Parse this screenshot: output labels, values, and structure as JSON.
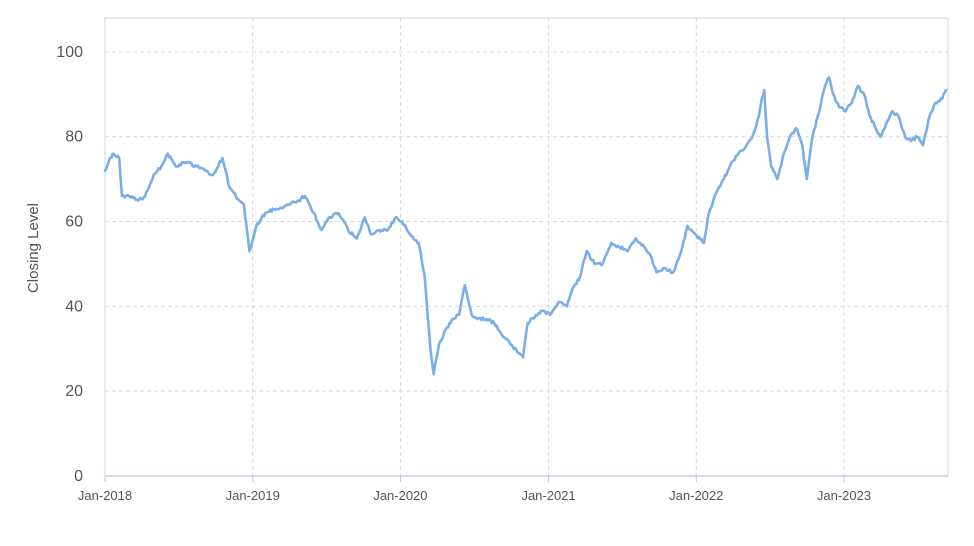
{
  "chart_data": {
    "type": "line",
    "title": "",
    "xlabel": "",
    "ylabel": "Closing Level",
    "ylim": [
      0,
      108
    ],
    "xlim": [
      "2018-01-01",
      "2023-09-15"
    ],
    "y_ticks": [
      "0",
      "20",
      "40",
      "60",
      "80",
      "100"
    ],
    "x_ticks": [
      {
        "label": "Jan-2018",
        "date": "2018-01-01"
      },
      {
        "label": "Jan-2019",
        "date": "2019-01-01"
      },
      {
        "label": "Jan-2020",
        "date": "2020-01-01"
      },
      {
        "label": "Jan-2021",
        "date": "2021-01-01"
      },
      {
        "label": "Jan-2022",
        "date": "2022-01-01"
      },
      {
        "label": "Jan-2023",
        "date": "2023-01-01"
      }
    ],
    "grid": true,
    "legend": "none",
    "series": [
      {
        "color": "#7aaee6",
        "points": [
          [
            "2018-01-01",
            72
          ],
          [
            "2018-01-20",
            76
          ],
          [
            "2018-02-05",
            75
          ],
          [
            "2018-02-12",
            66
          ],
          [
            "2018-03-01",
            66
          ],
          [
            "2018-03-25",
            65
          ],
          [
            "2018-04-10",
            66
          ],
          [
            "2018-05-01",
            71
          ],
          [
            "2018-05-20",
            73
          ],
          [
            "2018-06-05",
            76
          ],
          [
            "2018-06-25",
            73
          ],
          [
            "2018-07-20",
            74
          ],
          [
            "2018-08-15",
            73
          ],
          [
            "2018-09-05",
            72
          ],
          [
            "2018-09-25",
            71
          ],
          [
            "2018-10-18",
            75
          ],
          [
            "2018-11-05",
            68
          ],
          [
            "2018-11-20",
            66
          ],
          [
            "2018-12-10",
            64
          ],
          [
            "2018-12-24",
            53
          ],
          [
            "2019-01-10",
            59
          ],
          [
            "2019-02-01",
            62
          ],
          [
            "2019-03-01",
            63
          ],
          [
            "2019-04-01",
            64
          ],
          [
            "2019-04-25",
            65
          ],
          [
            "2019-05-10",
            66
          ],
          [
            "2019-06-01",
            62
          ],
          [
            "2019-06-20",
            58
          ],
          [
            "2019-07-10",
            61
          ],
          [
            "2019-08-01",
            62
          ],
          [
            "2019-08-25",
            58
          ],
          [
            "2019-09-15",
            56
          ],
          [
            "2019-10-05",
            61
          ],
          [
            "2019-10-20",
            57
          ],
          [
            "2019-11-10",
            58
          ],
          [
            "2019-12-01",
            58
          ],
          [
            "2019-12-20",
            61
          ],
          [
            "2020-01-05",
            60
          ],
          [
            "2020-01-25",
            57
          ],
          [
            "2020-02-15",
            55
          ],
          [
            "2020-03-01",
            47
          ],
          [
            "2020-03-15",
            30
          ],
          [
            "2020-03-23",
            24
          ],
          [
            "2020-04-05",
            31
          ],
          [
            "2020-04-25",
            35
          ],
          [
            "2020-05-10",
            37
          ],
          [
            "2020-05-25",
            38
          ],
          [
            "2020-06-08",
            45
          ],
          [
            "2020-06-25",
            38
          ],
          [
            "2020-07-10",
            37
          ],
          [
            "2020-08-01",
            37
          ],
          [
            "2020-08-20",
            36
          ],
          [
            "2020-09-10",
            33
          ],
          [
            "2020-10-01",
            31
          ],
          [
            "2020-10-20",
            29
          ],
          [
            "2020-10-30",
            28
          ],
          [
            "2020-11-10",
            36
          ],
          [
            "2020-12-01",
            38
          ],
          [
            "2020-12-20",
            39
          ],
          [
            "2021-01-05",
            38
          ],
          [
            "2021-01-25",
            41
          ],
          [
            "2021-02-15",
            40
          ],
          [
            "2021-03-01",
            44
          ],
          [
            "2021-03-20",
            47
          ],
          [
            "2021-04-05",
            53
          ],
          [
            "2021-04-25",
            50
          ],
          [
            "2021-05-15",
            50
          ],
          [
            "2021-06-05",
            55
          ],
          [
            "2021-06-25",
            54
          ],
          [
            "2021-07-15",
            53
          ],
          [
            "2021-08-05",
            56
          ],
          [
            "2021-08-25",
            54
          ],
          [
            "2021-09-10",
            52
          ],
          [
            "2021-09-25",
            48
          ],
          [
            "2021-10-15",
            49
          ],
          [
            "2021-11-05",
            48
          ],
          [
            "2021-11-25",
            53
          ],
          [
            "2021-12-10",
            59
          ],
          [
            "2021-12-30",
            57
          ],
          [
            "2022-01-20",
            55
          ],
          [
            "2022-02-01",
            62
          ],
          [
            "2022-02-20",
            67
          ],
          [
            "2022-03-10",
            70
          ],
          [
            "2022-03-25",
            73
          ],
          [
            "2022-04-15",
            76
          ],
          [
            "2022-05-05",
            78
          ],
          [
            "2022-05-20",
            80
          ],
          [
            "2022-06-05",
            85
          ],
          [
            "2022-06-12",
            89
          ],
          [
            "2022-06-18",
            91
          ],
          [
            "2022-06-25",
            80
          ],
          [
            "2022-07-05",
            73
          ],
          [
            "2022-07-20",
            70
          ],
          [
            "2022-08-05",
            76
          ],
          [
            "2022-08-20",
            80
          ],
          [
            "2022-09-05",
            82
          ],
          [
            "2022-09-20",
            78
          ],
          [
            "2022-10-01",
            70
          ],
          [
            "2022-10-15",
            80
          ],
          [
            "2022-11-01",
            86
          ],
          [
            "2022-11-15",
            92
          ],
          [
            "2022-11-25",
            94
          ],
          [
            "2022-12-05",
            90
          ],
          [
            "2022-12-20",
            87
          ],
          [
            "2023-01-05",
            86
          ],
          [
            "2023-01-20",
            88
          ],
          [
            "2023-02-05",
            92
          ],
          [
            "2023-02-20",
            90
          ],
          [
            "2023-03-05",
            85
          ],
          [
            "2023-03-20",
            82
          ],
          [
            "2023-04-01",
            80
          ],
          [
            "2023-04-15",
            83
          ],
          [
            "2023-05-01",
            86
          ],
          [
            "2023-05-15",
            85
          ],
          [
            "2023-06-01",
            80
          ],
          [
            "2023-06-15",
            79
          ],
          [
            "2023-07-01",
            80
          ],
          [
            "2023-07-15",
            78
          ],
          [
            "2023-08-01",
            85
          ],
          [
            "2023-08-15",
            88
          ],
          [
            "2023-09-01",
            89
          ],
          [
            "2023-09-10",
            91
          ]
        ]
      }
    ]
  }
}
